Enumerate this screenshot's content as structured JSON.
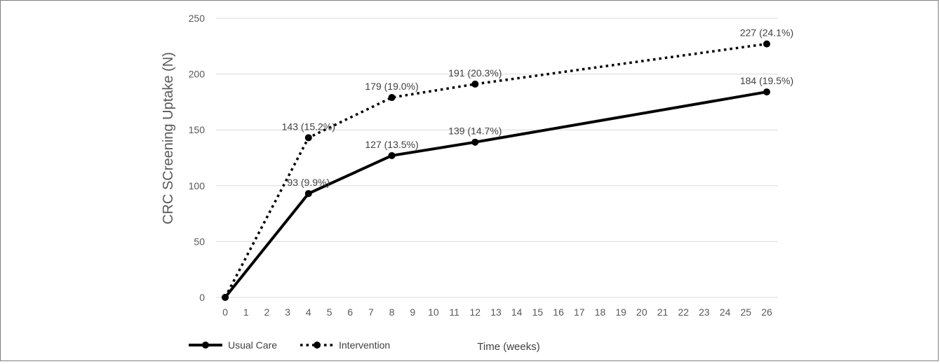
{
  "chart_data": {
    "type": "line",
    "title": "",
    "xlabel": "Time (weeks)",
    "ylabel": "CRC SCreening Uptake (N)",
    "x_ticks": [
      "0",
      "1",
      "2",
      "3",
      "4",
      "5",
      "6",
      "7",
      "8",
      "9",
      "10",
      "11",
      "12",
      "13",
      "14",
      "15",
      "16",
      "17",
      "18",
      "19",
      "20",
      "21",
      "22",
      "23",
      "24",
      "25",
      "26"
    ],
    "y_ticks": [
      "0",
      "50",
      "100",
      "150",
      "200",
      "250"
    ],
    "ylim": [
      0,
      250
    ],
    "xlim": [
      0,
      26
    ],
    "grid": "horizontal",
    "legend_position": "bottom-left",
    "series": [
      {
        "name": "Usual Care",
        "style": "solid",
        "color": "#000000",
        "points": [
          {
            "x": 0,
            "y": 0,
            "label": ""
          },
          {
            "x": 4,
            "y": 93,
            "label": "93 (9.9%)"
          },
          {
            "x": 8,
            "y": 127,
            "label": "127 (13.5%)"
          },
          {
            "x": 12,
            "y": 139,
            "label": "139 (14.7%)"
          },
          {
            "x": 26,
            "y": 184,
            "label": "184 (19.5%)"
          }
        ]
      },
      {
        "name": "Intervention",
        "style": "dotted",
        "color": "#000000",
        "points": [
          {
            "x": 0,
            "y": 0,
            "label": ""
          },
          {
            "x": 4,
            "y": 143,
            "label": "143 (15.2%)"
          },
          {
            "x": 8,
            "y": 179,
            "label": "179 (19.0%)"
          },
          {
            "x": 12,
            "y": 191,
            "label": "191 (20.3%)"
          },
          {
            "x": 26,
            "y": 227,
            "label": "227 (24.1%)"
          }
        ]
      }
    ]
  }
}
